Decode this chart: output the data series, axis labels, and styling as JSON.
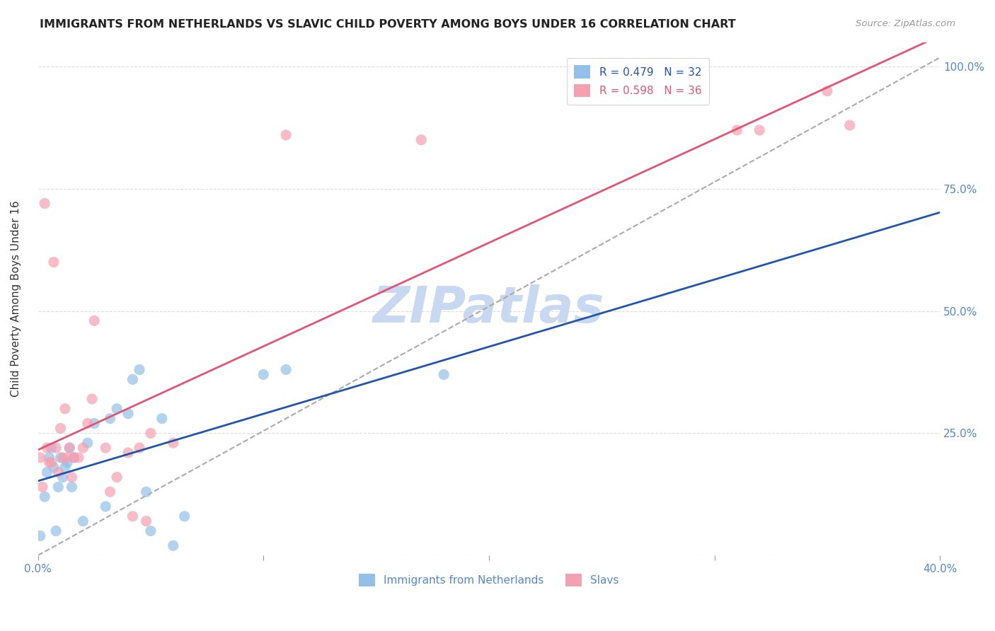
{
  "title": "IMMIGRANTS FROM NETHERLANDS VS SLAVIC CHILD POVERTY AMONG BOYS UNDER 16 CORRELATION CHART",
  "source": "Source: ZipAtlas.com",
  "ylabel": "Child Poverty Among Boys Under 16",
  "xlim": [
    0.0,
    0.4
  ],
  "ylim": [
    0.0,
    1.05
  ],
  "yticks": [
    0.0,
    0.25,
    0.5,
    0.75,
    1.0
  ],
  "xticks": [
    0.0,
    0.1,
    0.2,
    0.3,
    0.4
  ],
  "blue_R": 0.479,
  "blue_N": 32,
  "pink_R": 0.598,
  "pink_N": 36,
  "blue_color": "#93bfe8",
  "pink_color": "#f4a0b0",
  "blue_line_color": "#2255aa",
  "pink_line_color": "#e05575",
  "diagonal_color": "#aaaaaa",
  "title_color": "#222222",
  "tick_color": "#5588cc",
  "watermark_color": "#c8d8f0",
  "grid_color": "#dddddd",
  "background_color": "#ffffff",
  "blue_x": [
    0.001,
    0.003,
    0.004,
    0.005,
    0.006,
    0.007,
    0.008,
    0.009,
    0.01,
    0.011,
    0.012,
    0.013,
    0.014,
    0.015,
    0.016,
    0.02,
    0.022,
    0.025,
    0.03,
    0.032,
    0.035,
    0.04,
    0.042,
    0.045,
    0.048,
    0.05,
    0.055,
    0.06,
    0.065,
    0.1,
    0.11,
    0.18
  ],
  "blue_y": [
    0.04,
    0.12,
    0.17,
    0.2,
    0.22,
    0.18,
    0.05,
    0.14,
    0.2,
    0.16,
    0.18,
    0.19,
    0.22,
    0.14,
    0.2,
    0.07,
    0.23,
    0.27,
    0.1,
    0.28,
    0.3,
    0.29,
    0.36,
    0.38,
    0.13,
    0.05,
    0.28,
    0.02,
    0.08,
    0.37,
    0.38,
    0.37
  ],
  "pink_x": [
    0.001,
    0.002,
    0.003,
    0.004,
    0.005,
    0.006,
    0.007,
    0.008,
    0.009,
    0.01,
    0.011,
    0.012,
    0.013,
    0.014,
    0.015,
    0.016,
    0.018,
    0.02,
    0.022,
    0.024,
    0.025,
    0.03,
    0.032,
    0.035,
    0.04,
    0.042,
    0.045,
    0.048,
    0.05,
    0.06,
    0.11,
    0.17,
    0.31,
    0.32,
    0.35,
    0.36
  ],
  "pink_y": [
    0.2,
    0.14,
    0.72,
    0.22,
    0.19,
    0.19,
    0.6,
    0.22,
    0.17,
    0.26,
    0.2,
    0.3,
    0.2,
    0.22,
    0.16,
    0.2,
    0.2,
    0.22,
    0.27,
    0.32,
    0.48,
    0.22,
    0.13,
    0.16,
    0.21,
    0.08,
    0.22,
    0.07,
    0.25,
    0.23,
    0.86,
    0.85,
    0.87,
    0.87,
    0.95,
    0.88
  ]
}
